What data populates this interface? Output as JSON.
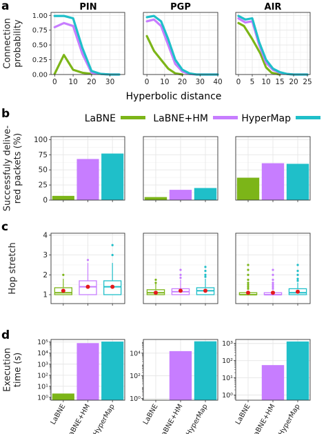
{
  "colors": {
    "LaBNE": "#7cb518",
    "LaBNE+HM": "#c77dff",
    "HyperMap": "#1fbfc9",
    "mean_marker": "#e31a1c",
    "grid": "#e6e6e6",
    "panel_border": "#333333"
  },
  "panel_letters": {
    "a": "a",
    "b": "b",
    "c": "c",
    "d": "d"
  },
  "networks": [
    "PIN",
    "PGP",
    "AIR"
  ],
  "legend": {
    "items": [
      "LaBNE",
      "LaBNE+HM",
      "HyperMap"
    ]
  },
  "chart_data": [
    {
      "id": "a",
      "type": "line",
      "ylabel": "Connection\nprobability",
      "xlabel": "Hyperbolic distance",
      "ylim": [
        0,
        1.05
      ],
      "yticks": [
        0.0,
        0.25,
        0.5,
        0.75,
        1.0
      ],
      "ytick_labels": [
        "0.00",
        "0.25",
        "0.50",
        "0.75",
        "1.00"
      ],
      "grid": true,
      "panels": [
        {
          "title": "PIN",
          "xlim": [
            -2,
            38
          ],
          "xticks": [
            0,
            10,
            20,
            30
          ],
          "series": [
            {
              "name": "LaBNE",
              "x": [
                0,
                5,
                10,
                15,
                20
              ],
              "y": [
                0.01,
                0.33,
                0.08,
                0.03,
                0.01
              ]
            },
            {
              "name": "LaBNE+HM",
              "x": [
                0,
                5,
                10,
                15,
                20,
                25,
                30,
                35
              ],
              "y": [
                0.8,
                0.87,
                0.82,
                0.35,
                0.03,
                0.01,
                0.0,
                0.0
              ]
            },
            {
              "name": "HyperMap",
              "x": [
                0,
                5,
                10,
                15,
                20,
                25,
                30,
                35
              ],
              "y": [
                0.99,
                0.99,
                0.95,
                0.45,
                0.06,
                0.01,
                0.0,
                0.0
              ]
            }
          ]
        },
        {
          "title": "PGP",
          "xlim": [
            -2,
            40
          ],
          "xticks": [
            0,
            10,
            20,
            30,
            40
          ],
          "series": [
            {
              "name": "LaBNE",
              "x": [
                0,
                4,
                8,
                12,
                16,
                20
              ],
              "y": [
                0.65,
                0.4,
                0.25,
                0.1,
                0.02,
                0.0
              ]
            },
            {
              "name": "LaBNE+HM",
              "x": [
                0,
                4,
                8,
                12,
                16,
                20,
                24,
                28,
                32,
                36,
                40
              ],
              "y": [
                0.9,
                0.93,
                0.82,
                0.5,
                0.18,
                0.05,
                0.01,
                0.0,
                0.0,
                0.0,
                0.0
              ]
            },
            {
              "name": "HyperMap",
              "x": [
                0,
                4,
                8,
                12,
                16,
                20,
                24,
                28,
                32,
                36,
                40
              ],
              "y": [
                0.97,
                0.99,
                0.9,
                0.6,
                0.25,
                0.08,
                0.02,
                0.0,
                0.0,
                0.0,
                0.0
              ]
            }
          ]
        },
        {
          "title": "AIR",
          "xlim": [
            -1,
            26
          ],
          "xticks": [
            0,
            5,
            10,
            15,
            20,
            25
          ],
          "series": [
            {
              "name": "LaBNE",
              "x": [
                0,
                2,
                5,
                8,
                10,
                12,
                15
              ],
              "y": [
                0.87,
                0.82,
                0.6,
                0.35,
                0.12,
                0.03,
                0.0
              ]
            },
            {
              "name": "LaBNE+HM",
              "x": [
                0,
                2.5,
                5,
                7.5,
                10,
                12.5,
                15,
                17.5,
                20,
                22.5,
                25
              ],
              "y": [
                0.95,
                0.88,
                0.9,
                0.5,
                0.2,
                0.08,
                0.03,
                0.01,
                0.0,
                0.0,
                0.0
              ]
            },
            {
              "name": "HyperMap",
              "x": [
                0,
                2.5,
                5,
                7.5,
                10,
                12.5,
                15,
                17.5,
                20,
                22.5,
                25
              ],
              "y": [
                0.99,
                0.93,
                0.95,
                0.55,
                0.25,
                0.1,
                0.04,
                0.01,
                0.0,
                0.0,
                0.0
              ]
            }
          ]
        }
      ]
    },
    {
      "id": "b",
      "type": "bar",
      "ylabel": "Successfuly delive-\nred packets (%)",
      "ylim": [
        0,
        105
      ],
      "yticks": [
        0,
        25,
        50,
        75,
        100
      ],
      "ytick_labels": [
        "0",
        "25",
        "50",
        "75",
        "100"
      ],
      "categories": [
        "LaBNE",
        "LaBNE+HM",
        "HyperMap"
      ],
      "grid": true,
      "panels": [
        {
          "title": "PIN",
          "values": [
            7,
            68,
            77
          ]
        },
        {
          "title": "PGP",
          "values": [
            5,
            17,
            20
          ]
        },
        {
          "title": "AIR",
          "values": [
            37,
            61,
            60
          ]
        }
      ]
    },
    {
      "id": "c",
      "type": "box",
      "ylabel": "Hop stretch",
      "ylim": [
        0.55,
        4.1
      ],
      "yticks": [
        1,
        2,
        3,
        4
      ],
      "ytick_labels": [
        "1",
        "2",
        "3",
        "4"
      ],
      "categories": [
        "LaBNE",
        "LaBNE+HM",
        "HyperMap"
      ],
      "grid": true,
      "panels": [
        {
          "title": "PIN",
          "boxes": [
            {
              "q1": 1.0,
              "median": 1.1,
              "q3": 1.35,
              "whisker_low": 1.0,
              "whisker_high": 1.8,
              "mean": 1.2,
              "outliers": [
                2.0
              ]
            },
            {
              "q1": 1.0,
              "median": 1.4,
              "q3": 1.7,
              "whisker_low": 1.0,
              "whisker_high": 2.6,
              "mean": 1.4,
              "outliers": [
                2.75
              ]
            },
            {
              "q1": 1.0,
              "median": 1.4,
              "q3": 1.7,
              "whisker_low": 1.0,
              "whisker_high": 2.6,
              "mean": 1.4,
              "outliers": [
                3.0,
                3.5
              ]
            }
          ]
        },
        {
          "title": "PGP",
          "boxes": [
            {
              "q1": 1.0,
              "median": 1.1,
              "q3": 1.25,
              "whisker_low": 1.0,
              "whisker_high": 1.55,
              "mean": 1.1,
              "outliers": [
                1.6,
                1.75
              ]
            },
            {
              "q1": 1.0,
              "median": 1.15,
              "q3": 1.3,
              "whisker_low": 1.0,
              "whisker_high": 1.75,
              "mean": 1.2,
              "outliers": [
                1.85,
                2.0,
                2.25
              ]
            },
            {
              "q1": 1.0,
              "median": 1.2,
              "q3": 1.35,
              "whisker_low": 1.0,
              "whisker_high": 1.8,
              "mean": 1.2,
              "outliers": [
                1.9,
                2.0,
                2.2,
                2.4
              ]
            }
          ]
        },
        {
          "title": "AIR",
          "boxes": [
            {
              "q1": 1.0,
              "median": 1.0,
              "q3": 1.1,
              "whisker_low": 1.0,
              "whisker_high": 1.2,
              "mean": 1.1,
              "outliers": [
                1.3,
                1.4,
                1.5,
                1.6,
                1.75,
                2.0,
                2.25,
                2.5
              ]
            },
            {
              "q1": 1.0,
              "median": 1.0,
              "q3": 1.1,
              "whisker_low": 1.0,
              "whisker_high": 1.2,
              "mean": 1.1,
              "outliers": [
                1.3,
                1.4,
                1.5,
                1.6,
                1.75,
                2.0,
                2.25
              ]
            },
            {
              "q1": 1.0,
              "median": 1.1,
              "q3": 1.3,
              "whisker_low": 1.0,
              "whisker_high": 1.6,
              "mean": 1.15,
              "outliers": [
                1.7,
                1.8,
                2.0,
                2.2,
                2.5
              ]
            }
          ]
        }
      ]
    },
    {
      "id": "d",
      "type": "bar",
      "scale": "log",
      "ylabel": "Execution\ntime (s)",
      "categories": [
        "LaBNE",
        "LaBNE+HM",
        "HyperMap"
      ],
      "grid": true,
      "panels": [
        {
          "title": "PIN",
          "ylim": [
            0.55,
            170000
          ],
          "yticks": [
            1,
            10,
            100,
            1000,
            10000,
            100000
          ],
          "ytick_labels": [
            "10⁰",
            "10¹",
            "10²",
            "10³",
            "10⁴",
            "10⁵"
          ],
          "values": [
            2.2,
            80000,
            110000
          ]
        },
        {
          "title": "PGP",
          "ylim": [
            0.7,
            160000
          ],
          "yticks": [
            1,
            100,
            10000
          ],
          "ytick_labels": [
            "10⁰",
            "10²",
            "10⁴"
          ],
          "values": [
            0.75,
            15000,
            110000
          ]
        },
        {
          "title": "AIR",
          "ylim": [
            0.5,
            1700
          ],
          "yticks": [
            1,
            10,
            100,
            1000
          ],
          "ytick_labels": [
            "10⁰",
            "10¹",
            "10²",
            "10³"
          ],
          "values": [
            0.45,
            55,
            1300
          ]
        }
      ]
    }
  ]
}
